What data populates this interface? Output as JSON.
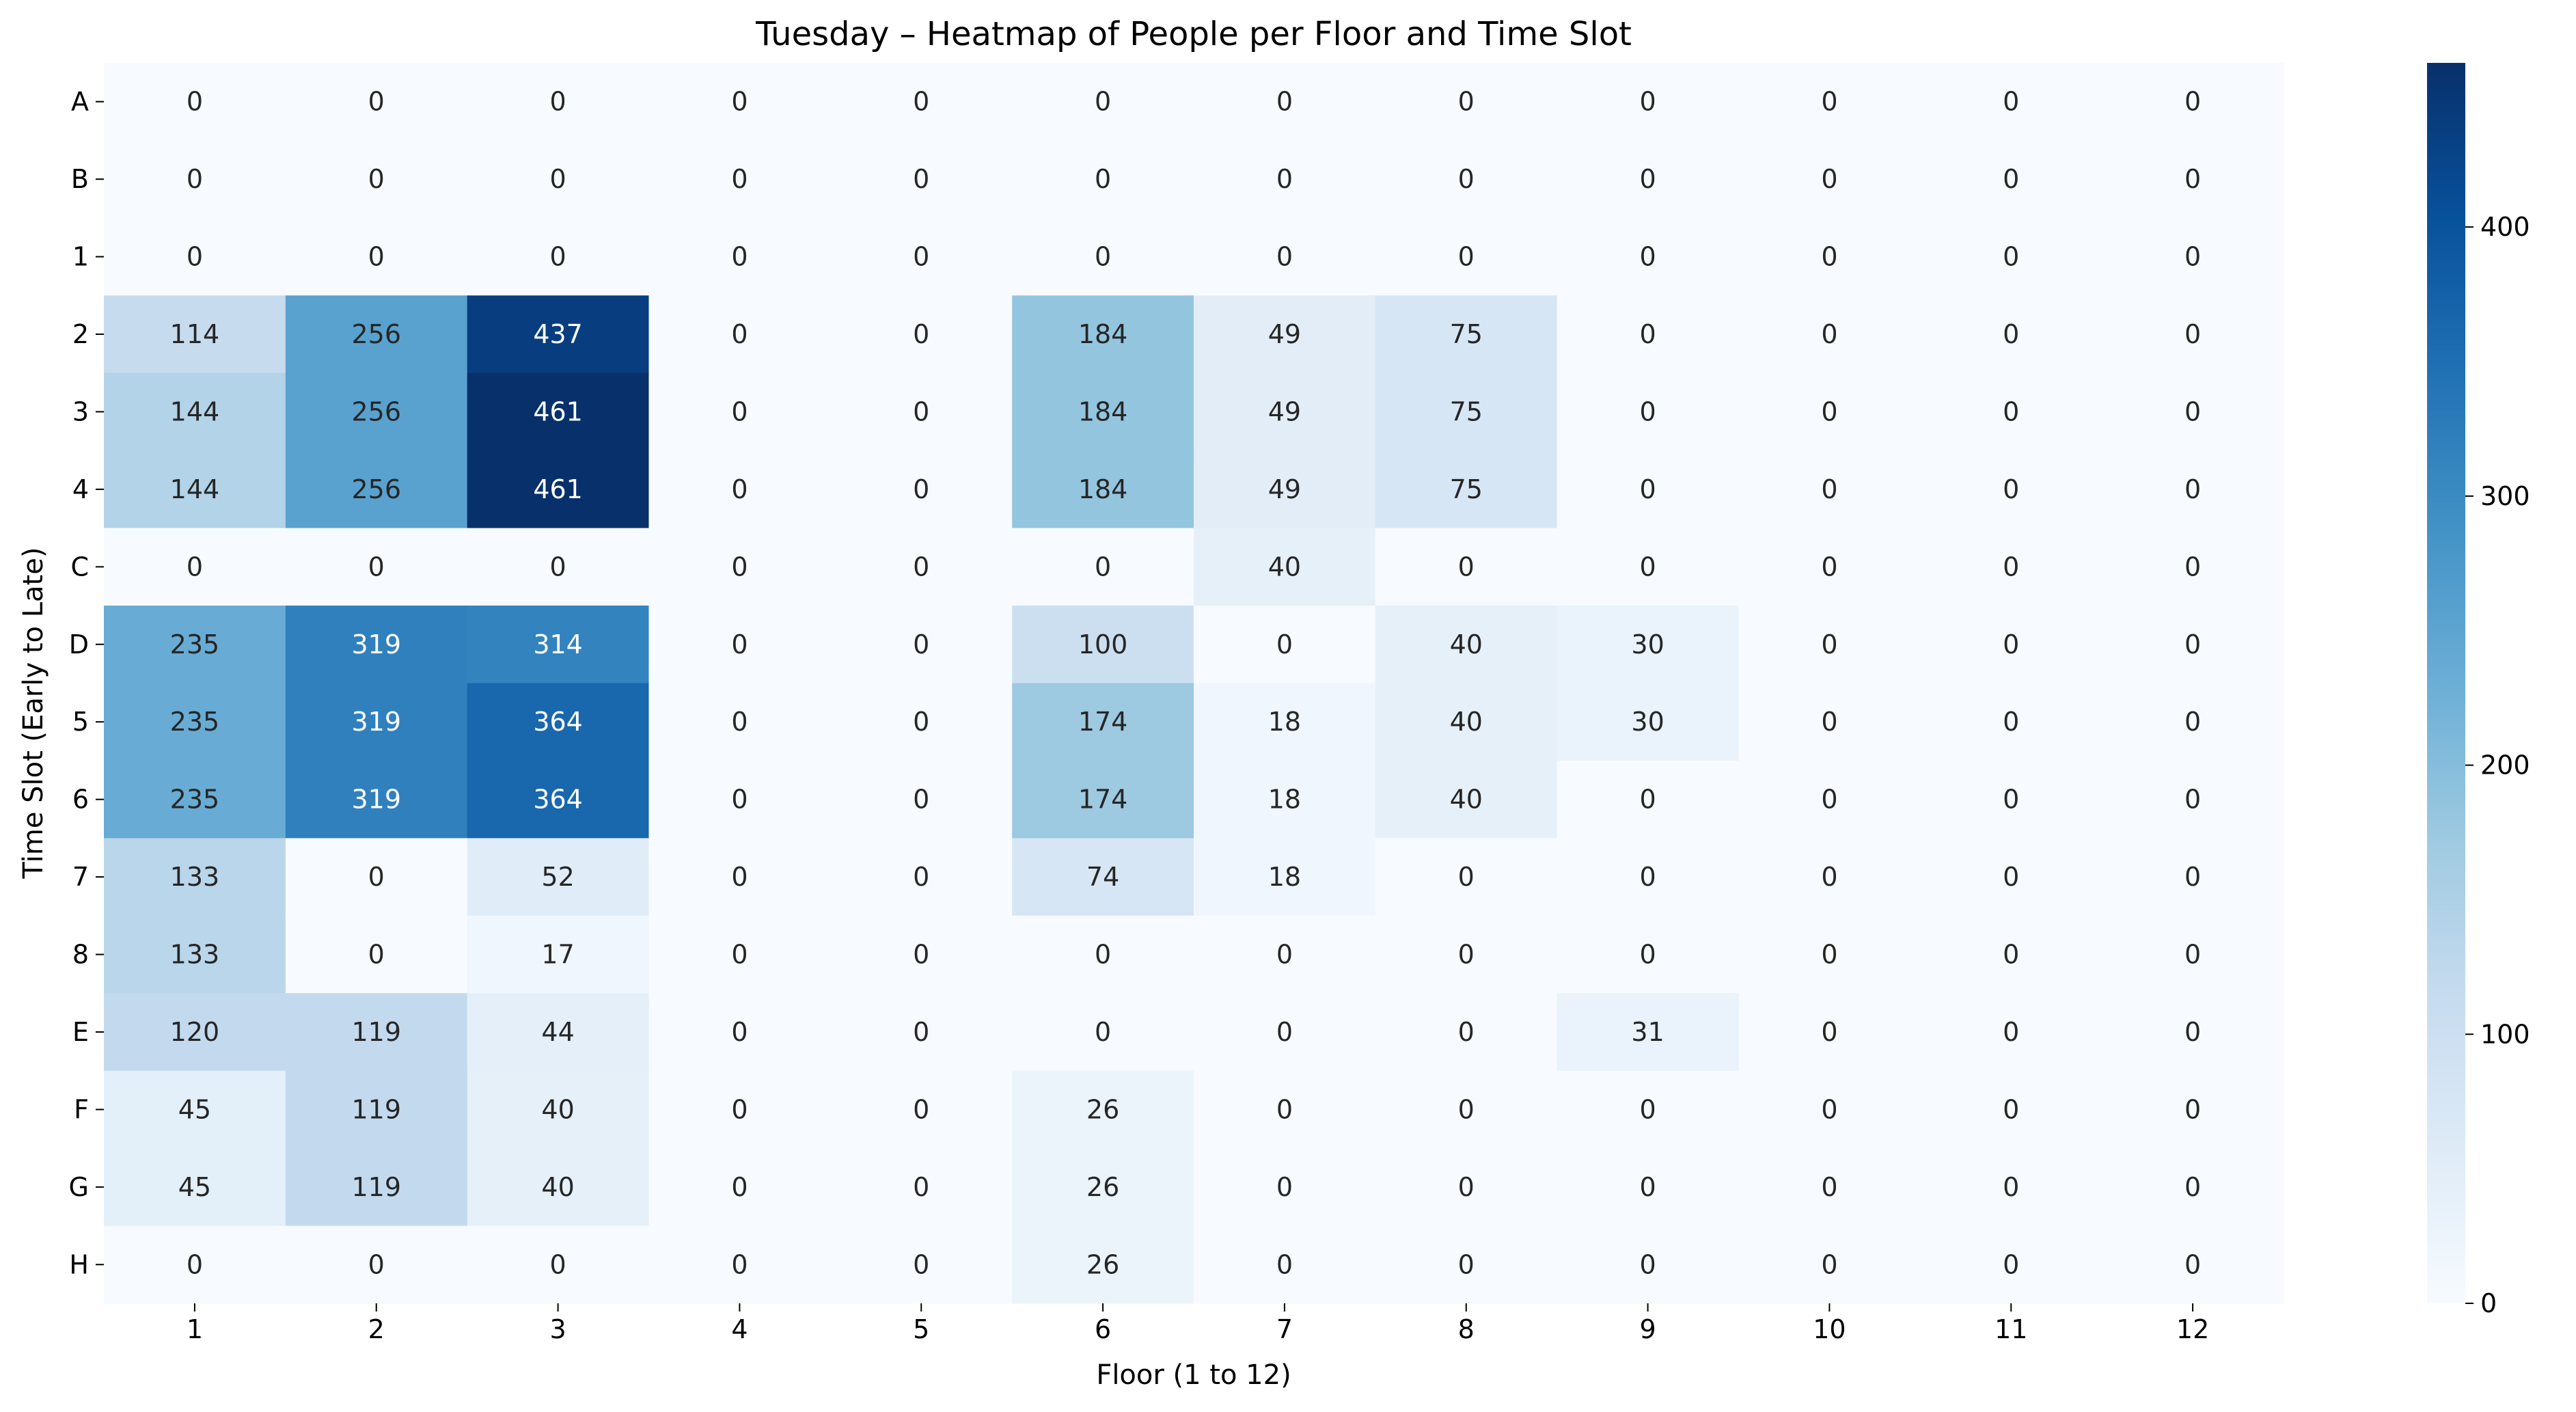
{
  "chart_data": {
    "type": "heatmap",
    "title": "Tuesday – Heatmap of People per Floor and Time Slot",
    "xlabel": "Floor (1 to 12)",
    "ylabel": "Time Slot (Early to Late)",
    "x_categories": [
      "1",
      "2",
      "3",
      "4",
      "5",
      "6",
      "7",
      "8",
      "9",
      "10",
      "11",
      "12"
    ],
    "y_categories": [
      "A",
      "B",
      "1",
      "2",
      "3",
      "4",
      "C",
      "D",
      "5",
      "6",
      "7",
      "8",
      "E",
      "F",
      "G",
      "H"
    ],
    "values": [
      [
        0,
        0,
        0,
        0,
        0,
        0,
        0,
        0,
        0,
        0,
        0,
        0
      ],
      [
        0,
        0,
        0,
        0,
        0,
        0,
        0,
        0,
        0,
        0,
        0,
        0
      ],
      [
        0,
        0,
        0,
        0,
        0,
        0,
        0,
        0,
        0,
        0,
        0,
        0
      ],
      [
        114,
        256,
        437,
        0,
        0,
        184,
        49,
        75,
        0,
        0,
        0,
        0
      ],
      [
        144,
        256,
        461,
        0,
        0,
        184,
        49,
        75,
        0,
        0,
        0,
        0
      ],
      [
        144,
        256,
        461,
        0,
        0,
        184,
        49,
        75,
        0,
        0,
        0,
        0
      ],
      [
        0,
        0,
        0,
        0,
        0,
        0,
        40,
        0,
        0,
        0,
        0,
        0
      ],
      [
        235,
        319,
        314,
        0,
        0,
        100,
        0,
        40,
        30,
        0,
        0,
        0
      ],
      [
        235,
        319,
        364,
        0,
        0,
        174,
        18,
        40,
        30,
        0,
        0,
        0
      ],
      [
        235,
        319,
        364,
        0,
        0,
        174,
        18,
        40,
        0,
        0,
        0,
        0
      ],
      [
        133,
        0,
        52,
        0,
        0,
        74,
        18,
        0,
        0,
        0,
        0,
        0
      ],
      [
        133,
        0,
        17,
        0,
        0,
        0,
        0,
        0,
        0,
        0,
        0,
        0
      ],
      [
        120,
        119,
        44,
        0,
        0,
        0,
        0,
        0,
        31,
        0,
        0,
        0
      ],
      [
        45,
        119,
        40,
        0,
        0,
        26,
        0,
        0,
        0,
        0,
        0,
        0
      ],
      [
        45,
        119,
        40,
        0,
        0,
        26,
        0,
        0,
        0,
        0,
        0,
        0
      ],
      [
        0,
        0,
        0,
        0,
        0,
        26,
        0,
        0,
        0,
        0,
        0,
        0
      ]
    ],
    "colorbar": {
      "min": 0,
      "max": 461,
      "ticks": [
        0,
        100,
        200,
        300,
        400
      ],
      "colormap": "Blues"
    },
    "grid": false
  }
}
